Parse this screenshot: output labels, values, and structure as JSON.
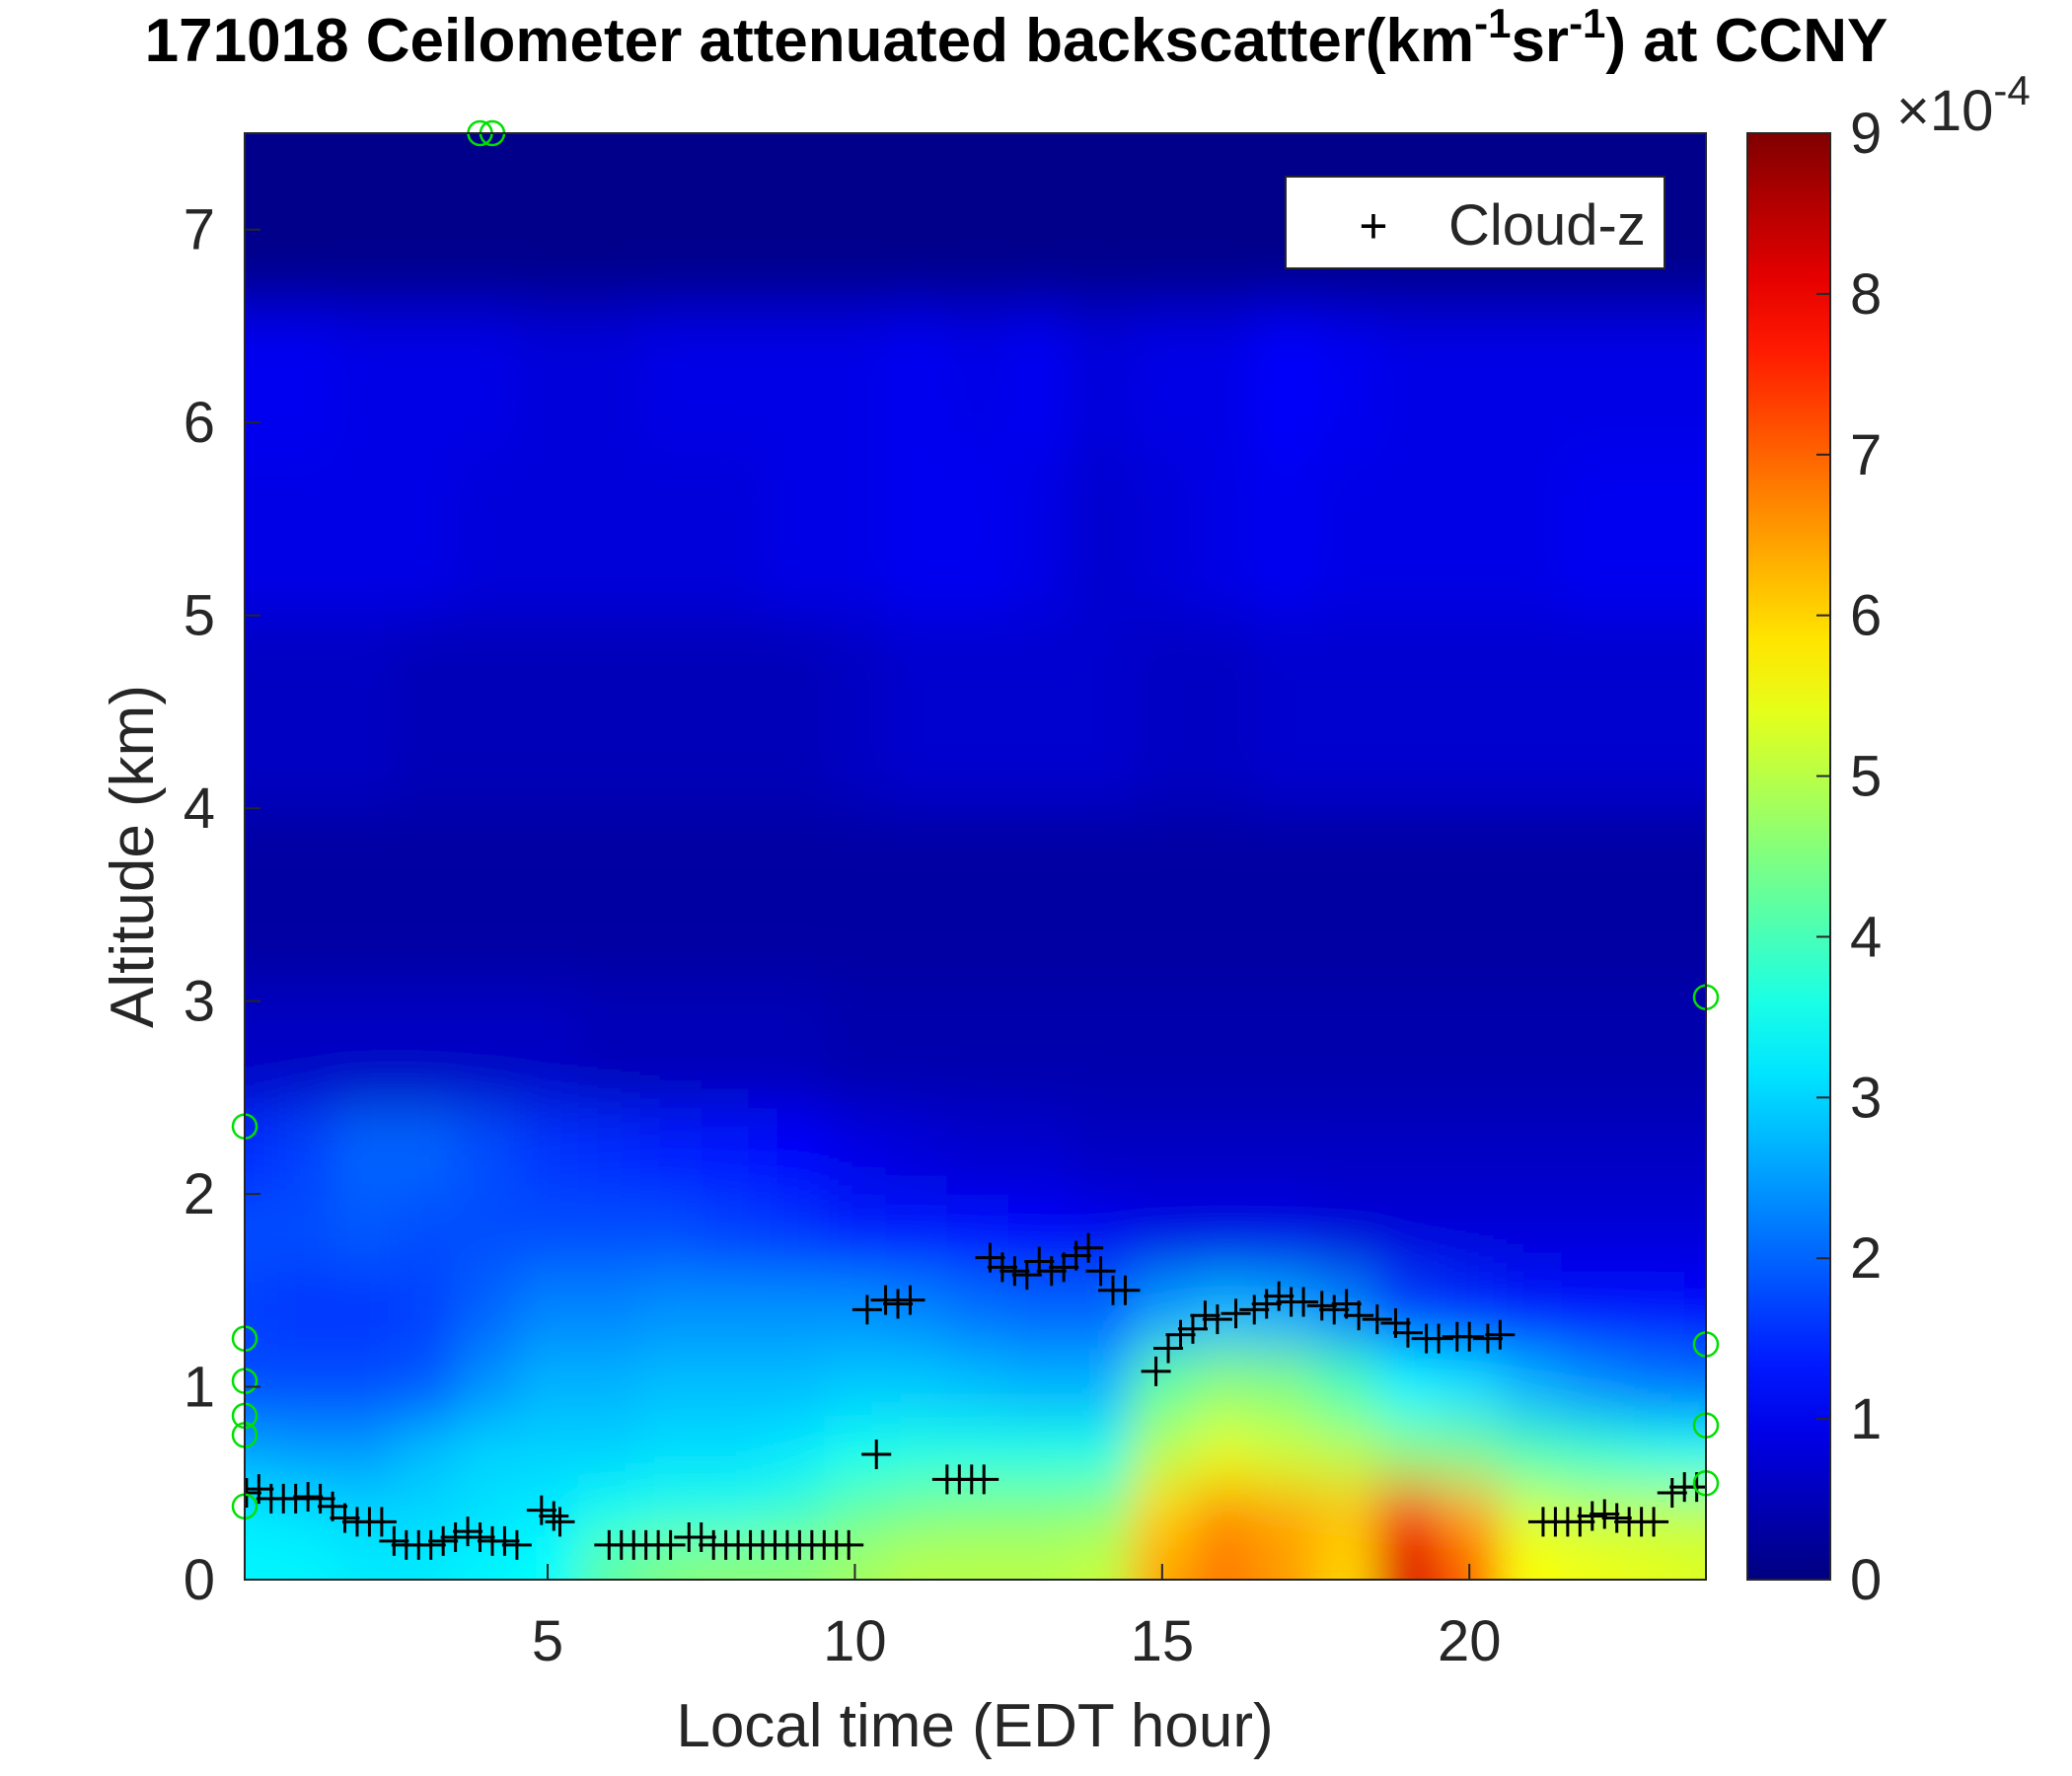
{
  "chart_data": {
    "type": "heatmap",
    "title": {
      "main": "171018 Ceilometer attenuated backscatter(km",
      "sup1": "-1",
      "mid": "sr",
      "sup2": "-1",
      "end": ") at CCNY"
    },
    "xlabel": "Local time (EDT hour)",
    "ylabel": "Altitude (km)",
    "xlim": [
      0.07,
      23.85
    ],
    "ylim": [
      0,
      7.5
    ],
    "xticks": [
      5,
      10,
      15,
      20
    ],
    "xtick_labels": [
      "5",
      "10",
      "15",
      "20"
    ],
    "yticks": [
      0,
      1,
      2,
      3,
      4,
      5,
      6,
      7
    ],
    "ytick_labels": [
      "0",
      "1",
      "2",
      "3",
      "4",
      "5",
      "6",
      "7"
    ],
    "colorbar": {
      "range": [
        0,
        9
      ],
      "ticks": [
        0,
        1,
        2,
        3,
        4,
        5,
        6,
        7,
        8,
        9
      ],
      "tick_labels": [
        "0",
        "1",
        "2",
        "3",
        "4",
        "5",
        "6",
        "7",
        "8",
        "9"
      ],
      "exponent_label": "×10",
      "exponent_power": "-4",
      "colormap": "jet"
    },
    "legend": {
      "placement": "top-right",
      "entries": [
        {
          "marker": "+",
          "label": "Cloud-z"
        }
      ]
    },
    "heatmap": {
      "units": "1e-4 km^-1 sr^-1",
      "x_hours": [
        0,
        1,
        2,
        3,
        4,
        5,
        6,
        7,
        8,
        9,
        10,
        11,
        12,
        13,
        14,
        15,
        16,
        17,
        18,
        19,
        20,
        21,
        22,
        23,
        24
      ],
      "z_km": [
        0.1,
        0.35,
        0.65,
        1.0,
        1.4,
        1.8,
        2.2,
        2.7,
        3.5,
        4.5,
        5.5,
        6.2,
        7.0
      ],
      "values": [
        [
          3.3,
          3.3,
          3.2,
          3.2,
          3.3,
          3.4,
          4.2,
          4.5,
          4.6,
          4.6,
          4.8,
          5.0,
          5.0,
          5.0,
          5.1,
          6.4,
          6.8,
          6.5,
          6.0,
          8.2,
          7.0,
          5.6,
          5.5,
          5.4,
          5.3
        ],
        [
          3.2,
          3.1,
          3.0,
          3.0,
          3.1,
          3.2,
          3.5,
          3.6,
          3.6,
          3.8,
          4.2,
          4.4,
          4.5,
          4.5,
          4.6,
          6.0,
          6.6,
          6.4,
          6.2,
          7.4,
          6.4,
          5.2,
          5.0,
          5.0,
          5.0
        ],
        [
          2.6,
          2.5,
          2.5,
          2.8,
          3.0,
          3.0,
          3.0,
          3.1,
          3.1,
          3.2,
          3.5,
          3.6,
          3.6,
          3.6,
          3.6,
          5.0,
          5.4,
          5.2,
          5.0,
          4.6,
          4.4,
          4.0,
          3.8,
          3.6,
          3.5
        ],
        [
          1.8,
          1.8,
          1.8,
          1.9,
          2.4,
          2.7,
          2.7,
          2.8,
          2.8,
          2.8,
          2.9,
          2.9,
          2.8,
          2.7,
          2.7,
          4.2,
          4.6,
          4.5,
          4.0,
          3.3,
          3.1,
          2.7,
          2.4,
          2.2,
          2.1
        ],
        [
          1.7,
          1.6,
          1.6,
          1.7,
          2.0,
          2.3,
          2.3,
          2.4,
          2.4,
          2.4,
          2.4,
          2.3,
          2.1,
          2.0,
          2.0,
          2.5,
          2.7,
          2.6,
          2.3,
          1.7,
          1.5,
          1.3,
          1.2,
          1.2,
          1.1
        ],
        [
          1.8,
          1.8,
          1.9,
          1.8,
          1.8,
          1.8,
          1.8,
          1.8,
          1.7,
          1.6,
          1.4,
          1.3,
          1.2,
          1.1,
          1.0,
          0.9,
          0.9,
          0.9,
          0.8,
          0.8,
          0.8,
          0.8,
          0.8,
          0.8,
          0.8
        ],
        [
          1.5,
          1.7,
          2.0,
          2.0,
          1.8,
          1.6,
          1.5,
          1.4,
          1.3,
          1.1,
          0.9,
          0.8,
          0.7,
          0.7,
          0.6,
          0.6,
          0.6,
          0.6,
          0.6,
          0.6,
          0.6,
          0.6,
          0.6,
          0.6,
          0.6
        ],
        [
          0.6,
          0.6,
          0.6,
          0.6,
          0.6,
          0.6,
          0.5,
          0.5,
          0.5,
          0.5,
          0.4,
          0.4,
          0.4,
          0.4,
          0.4,
          0.4,
          0.4,
          0.4,
          0.4,
          0.4,
          0.4,
          0.4,
          0.4,
          0.4,
          0.4
        ],
        [
          0.3,
          0.3,
          0.3,
          0.3,
          0.3,
          0.3,
          0.3,
          0.3,
          0.3,
          0.3,
          0.3,
          0.3,
          0.3,
          0.3,
          0.3,
          0.3,
          0.3,
          0.3,
          0.3,
          0.3,
          0.3,
          0.3,
          0.3,
          0.3,
          0.3
        ],
        [
          0.6,
          0.6,
          0.6,
          0.5,
          0.5,
          0.5,
          0.5,
          0.5,
          0.5,
          0.5,
          0.6,
          0.7,
          0.7,
          0.7,
          0.7,
          0.6,
          0.6,
          0.7,
          0.7,
          0.7,
          0.7,
          0.7,
          0.7,
          0.7,
          0.7
        ],
        [
          0.9,
          0.9,
          0.9,
          0.9,
          0.8,
          0.8,
          0.8,
          0.8,
          0.8,
          0.9,
          0.9,
          1.0,
          1.0,
          0.9,
          0.7,
          0.8,
          0.9,
          1.0,
          0.9,
          0.9,
          0.9,
          0.9,
          1.0,
          1.0,
          1.0
        ],
        [
          1.0,
          1.0,
          0.9,
          0.9,
          0.9,
          0.8,
          0.8,
          0.9,
          0.9,
          0.9,
          0.9,
          1.0,
          0.9,
          1.0,
          0.8,
          0.9,
          0.9,
          1.1,
          1.0,
          0.9,
          0.9,
          0.9,
          0.9,
          0.9,
          0.9
        ],
        [
          0.1,
          0.1,
          0.1,
          0.1,
          0.1,
          0.1,
          0.1,
          0.1,
          0.1,
          0.1,
          0.1,
          0.1,
          0.1,
          0.1,
          0.1,
          0.1,
          0.1,
          0.1,
          0.1,
          0.1,
          0.1,
          0.1,
          0.1,
          0.1,
          0.1
        ]
      ]
    },
    "series": [
      {
        "name": "Cloud-z",
        "marker": "+",
        "color": "#000000",
        "points": [
          [
            0.1,
            0.45
          ],
          [
            0.3,
            0.47
          ],
          [
            0.5,
            0.42
          ],
          [
            0.7,
            0.42
          ],
          [
            0.9,
            0.42
          ],
          [
            1.1,
            0.43
          ],
          [
            1.3,
            0.42
          ],
          [
            1.5,
            0.38
          ],
          [
            1.7,
            0.32
          ],
          [
            1.9,
            0.3
          ],
          [
            2.1,
            0.3
          ],
          [
            2.3,
            0.3
          ],
          [
            2.5,
            0.2
          ],
          [
            2.7,
            0.18
          ],
          [
            2.9,
            0.18
          ],
          [
            3.1,
            0.18
          ],
          [
            3.3,
            0.2
          ],
          [
            3.5,
            0.22
          ],
          [
            3.7,
            0.25
          ],
          [
            3.9,
            0.22
          ],
          [
            4.1,
            0.2
          ],
          [
            4.3,
            0.2
          ],
          [
            4.5,
            0.18
          ],
          [
            4.9,
            0.36
          ],
          [
            5.1,
            0.33
          ],
          [
            5.2,
            0.3
          ],
          [
            6.0,
            0.18
          ],
          [
            6.2,
            0.18
          ],
          [
            6.4,
            0.18
          ],
          [
            6.6,
            0.18
          ],
          [
            6.8,
            0.18
          ],
          [
            7.0,
            0.18
          ],
          [
            7.3,
            0.22
          ],
          [
            7.5,
            0.22
          ],
          [
            7.7,
            0.18
          ],
          [
            7.9,
            0.18
          ],
          [
            8.1,
            0.18
          ],
          [
            8.3,
            0.18
          ],
          [
            8.5,
            0.18
          ],
          [
            8.7,
            0.18
          ],
          [
            8.9,
            0.18
          ],
          [
            9.1,
            0.18
          ],
          [
            9.3,
            0.18
          ],
          [
            9.5,
            0.18
          ],
          [
            9.7,
            0.18
          ],
          [
            9.9,
            0.18
          ],
          [
            10.2,
            1.4
          ],
          [
            10.35,
            0.65
          ],
          [
            10.5,
            1.45
          ],
          [
            10.7,
            1.43
          ],
          [
            10.9,
            1.45
          ],
          [
            11.5,
            0.52
          ],
          [
            11.7,
            0.52
          ],
          [
            11.9,
            0.52
          ],
          [
            12.1,
            0.52
          ],
          [
            12.2,
            1.67
          ],
          [
            12.4,
            1.62
          ],
          [
            12.6,
            1.6
          ],
          [
            12.8,
            1.58
          ],
          [
            13.0,
            1.65
          ],
          [
            13.2,
            1.6
          ],
          [
            13.4,
            1.62
          ],
          [
            13.6,
            1.68
          ],
          [
            13.8,
            1.72
          ],
          [
            14.0,
            1.6
          ],
          [
            14.2,
            1.5
          ],
          [
            14.4,
            1.5
          ],
          [
            14.9,
            1.08
          ],
          [
            15.1,
            1.2
          ],
          [
            15.3,
            1.27
          ],
          [
            15.5,
            1.3
          ],
          [
            15.7,
            1.37
          ],
          [
            15.9,
            1.35
          ],
          [
            16.2,
            1.38
          ],
          [
            16.5,
            1.4
          ],
          [
            16.7,
            1.43
          ],
          [
            16.9,
            1.47
          ],
          [
            17.1,
            1.44
          ],
          [
            17.3,
            1.44
          ],
          [
            17.6,
            1.42
          ],
          [
            17.8,
            1.4
          ],
          [
            18.0,
            1.43
          ],
          [
            18.2,
            1.37
          ],
          [
            18.5,
            1.35
          ],
          [
            18.8,
            1.33
          ],
          [
            19.0,
            1.28
          ],
          [
            19.3,
            1.25
          ],
          [
            19.5,
            1.25
          ],
          [
            19.8,
            1.26
          ],
          [
            20.0,
            1.26
          ],
          [
            20.3,
            1.25
          ],
          [
            20.5,
            1.27
          ],
          [
            21.2,
            0.3
          ],
          [
            21.4,
            0.3
          ],
          [
            21.6,
            0.3
          ],
          [
            21.8,
            0.3
          ],
          [
            22.0,
            0.33
          ],
          [
            22.2,
            0.34
          ],
          [
            22.4,
            0.32
          ],
          [
            22.6,
            0.3
          ],
          [
            22.8,
            0.3
          ],
          [
            23.0,
            0.3
          ],
          [
            23.3,
            0.45
          ],
          [
            23.5,
            0.48
          ],
          [
            23.7,
            0.48
          ]
        ]
      },
      {
        "name": "edge-markers",
        "marker": "o",
        "color": "#00e000",
        "points": [
          [
            0.07,
            2.35
          ],
          [
            0.07,
            1.25
          ],
          [
            0.07,
            1.03
          ],
          [
            0.07,
            0.85
          ],
          [
            0.07,
            0.75
          ],
          [
            0.07,
            0.38
          ],
          [
            23.85,
            3.02
          ],
          [
            23.85,
            1.22
          ],
          [
            23.85,
            0.8
          ],
          [
            23.85,
            0.5
          ],
          [
            3.9,
            7.5
          ],
          [
            4.1,
            7.5
          ]
        ]
      }
    ]
  }
}
